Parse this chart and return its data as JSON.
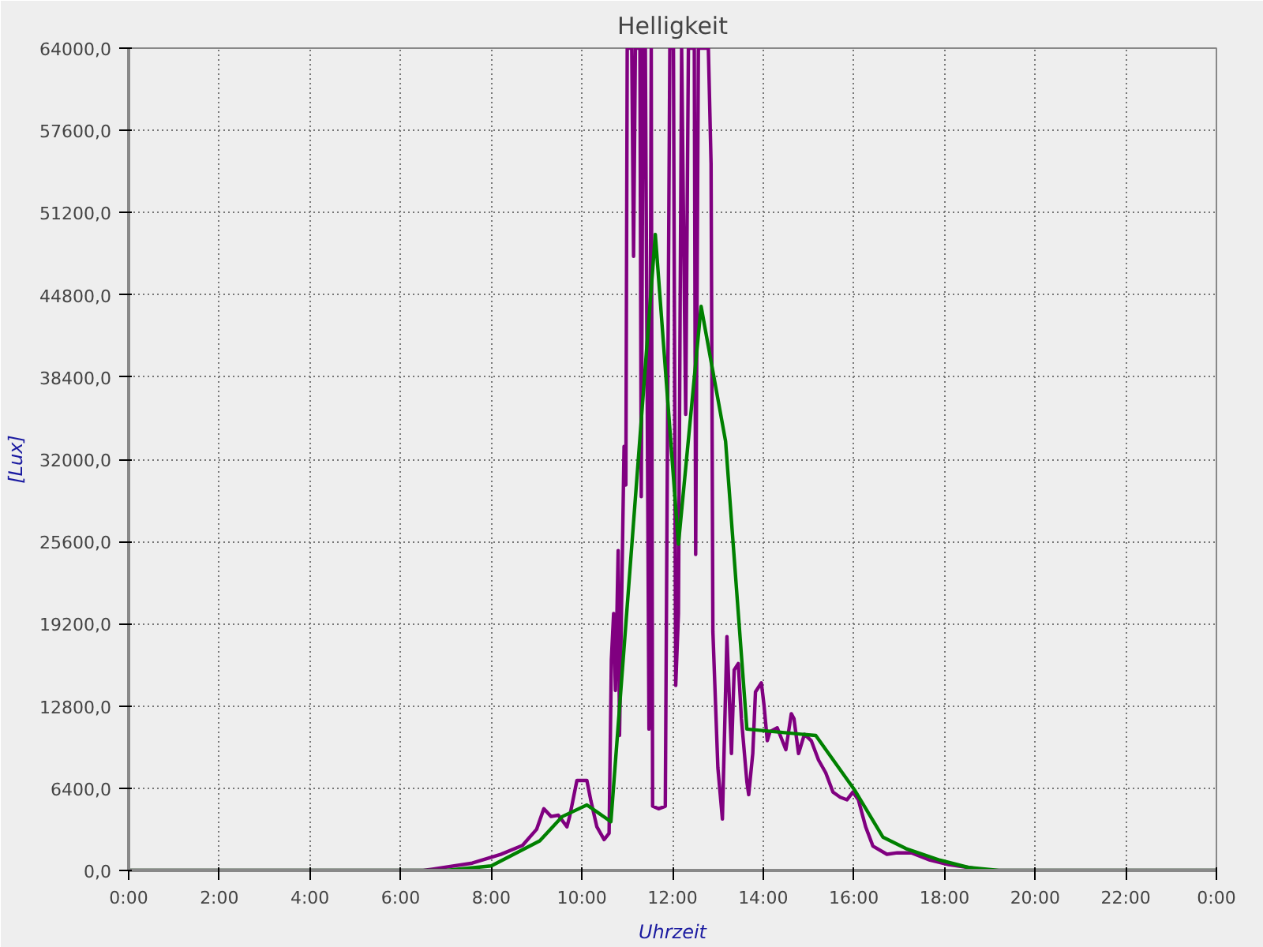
{
  "chart_data": {
    "type": "line",
    "title": "Helligkeit",
    "xlabel": "Uhrzeit",
    "ylabel": "[Lux]",
    "xlim": [
      0,
      24
    ],
    "ylim": [
      0,
      64000
    ],
    "xticks": [
      {
        "value": 0,
        "label": "0:00"
      },
      {
        "value": 2,
        "label": "2:00"
      },
      {
        "value": 4,
        "label": "4:00"
      },
      {
        "value": 6,
        "label": "6:00"
      },
      {
        "value": 8,
        "label": "8:00"
      },
      {
        "value": 10,
        "label": "10:00"
      },
      {
        "value": 12,
        "label": "12:00"
      },
      {
        "value": 14,
        "label": "14:00"
      },
      {
        "value": 16,
        "label": "16:00"
      },
      {
        "value": 18,
        "label": "18:00"
      },
      {
        "value": 20,
        "label": "20:00"
      },
      {
        "value": 22,
        "label": "22:00"
      },
      {
        "value": 24,
        "label": "0:00"
      }
    ],
    "yticks": [
      {
        "value": 0,
        "label": "0,0"
      },
      {
        "value": 6400,
        "label": "6400,0"
      },
      {
        "value": 12800,
        "label": "12800,0"
      },
      {
        "value": 19200,
        "label": "19200,0"
      },
      {
        "value": 25600,
        "label": "25600,0"
      },
      {
        "value": 32000,
        "label": "32000,0"
      },
      {
        "value": 38400,
        "label": "38400,0"
      },
      {
        "value": 44800,
        "label": "44800,0"
      },
      {
        "value": 51200,
        "label": "51200,0"
      },
      {
        "value": 57600,
        "label": "57600,0"
      },
      {
        "value": 64000,
        "label": "64000,0"
      }
    ],
    "grid": true,
    "series": [
      {
        "color": "#800080",
        "x": [
          0,
          6.5,
          6.7,
          7.58,
          8.21,
          8.69,
          9.0,
          9.16,
          9.32,
          9.48,
          9.67,
          9.73,
          9.89,
          10.11,
          10.2,
          10.33,
          10.49,
          10.6,
          10.65,
          10.7,
          10.74,
          10.8,
          10.83,
          10.93,
          10.97,
          11.0,
          11.1,
          11.14,
          11.18,
          11.28,
          11.31,
          11.35,
          11.4,
          11.48,
          11.53,
          11.56,
          11.69,
          11.84,
          11.94,
          12.02,
          12.07,
          12.13,
          12.2,
          12.29,
          12.35,
          12.48,
          12.51,
          12.57,
          12.79,
          12.85,
          12.89,
          13.0,
          13.1,
          13.2,
          13.3,
          13.36,
          13.45,
          13.52,
          13.64,
          13.68,
          13.77,
          13.83,
          13.96,
          14.02,
          14.09,
          14.15,
          14.31,
          14.5,
          14.62,
          14.68,
          14.78,
          14.91,
          15.06,
          15.22,
          15.38,
          15.54,
          15.7,
          15.85,
          15.98,
          16.1,
          16.26,
          16.42,
          16.73,
          16.96,
          17.27,
          17.68,
          18.09,
          18.53,
          18.94,
          24
        ],
        "values": [
          0,
          0,
          100,
          570,
          1250,
          1950,
          3200,
          4800,
          4200,
          4300,
          3400,
          4200,
          7000,
          7000,
          5400,
          3400,
          2400,
          2900,
          16400,
          20000,
          14000,
          24900,
          10500,
          33000,
          30000,
          64000,
          64000,
          47800,
          64000,
          64000,
          29100,
          64000,
          64000,
          11000,
          64000,
          5000,
          4800,
          5000,
          64000,
          64000,
          14400,
          20000,
          64000,
          35500,
          64000,
          64000,
          24600,
          64000,
          64000,
          55000,
          18600,
          8000,
          4000,
          18200,
          9100,
          15600,
          16100,
          11800,
          6900,
          5900,
          9100,
          13900,
          14600,
          12800,
          10100,
          10800,
          11100,
          9400,
          12200,
          11800,
          9100,
          10600,
          10100,
          8600,
          7600,
          6100,
          5700,
          5500,
          6100,
          5500,
          3400,
          1900,
          1260,
          1370,
          1370,
          800,
          460,
          230,
          0,
          0
        ]
      },
      {
        "color": "#008000",
        "x": [
          0,
          7.0,
          8.0,
          9.07,
          9.57,
          10.11,
          10.64,
          11.62,
          12.13,
          12.63,
          13.17,
          13.64,
          15.16,
          16.01,
          16.64,
          17.15,
          17.9,
          18.53,
          19.2,
          24
        ],
        "values": [
          0,
          0,
          350,
          2300,
          4200,
          5100,
          3800,
          49500,
          25400,
          43900,
          33400,
          11000,
          10500,
          6300,
          2600,
          1700,
          800,
          230,
          0,
          0
        ]
      }
    ]
  }
}
